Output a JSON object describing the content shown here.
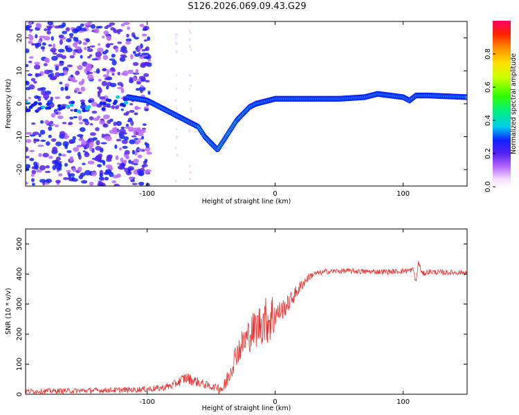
{
  "title": "S126.2026.069.09.43.G29",
  "colors": {
    "snr_line": "#e8312f",
    "axis": "#000000"
  },
  "chart_data": [
    {
      "type": "heatmap",
      "xlabel": "Height of straight line (km)",
      "ylabel": "Frequency (Hz)",
      "xlim": [
        -195,
        150
      ],
      "ylim": [
        -25,
        25
      ],
      "xticks": [
        -100,
        0,
        100
      ],
      "yticks": [
        -20,
        -10,
        0,
        10,
        20
      ],
      "colorbar": {
        "label": "Normalized spectral amplitude",
        "range": [
          0,
          1
        ],
        "ticks": [
          0.0,
          0.2,
          0.4,
          0.6,
          0.8
        ]
      },
      "ridge": {
        "x": [
          -115,
          -100,
          -90,
          -80,
          -70,
          -60,
          -55,
          -50,
          -45,
          -40,
          -35,
          -30,
          -25,
          -20,
          -15,
          -10,
          -5,
          0,
          10,
          30,
          50,
          70,
          80,
          90,
          100,
          105,
          110,
          120,
          150
        ],
        "freq": [
          2,
          1,
          -1,
          -3,
          -5,
          -7,
          -10,
          -12,
          -14,
          -11,
          -8,
          -5,
          -3,
          -1,
          0,
          0.5,
          1,
          1.5,
          1.5,
          1.5,
          1.5,
          2,
          3,
          2.5,
          2,
          1,
          2.5,
          2.5,
          2
        ]
      }
    },
    {
      "type": "line",
      "xlabel": "Height of straight line (km)",
      "ylabel": "SNR (10 * v/v)",
      "xlim": [
        -195,
        150
      ],
      "ylim": [
        0,
        550
      ],
      "xticks": [
        -100,
        0,
        100
      ],
      "yticks": [
        0,
        100,
        200,
        300,
        400,
        500
      ],
      "series": [
        {
          "name": "SNR",
          "x": [
            -195,
            -150,
            -110,
            -90,
            -80,
            -70,
            -60,
            -50,
            -40,
            -35,
            -30,
            -25,
            -20,
            -15,
            -10,
            -5,
            0,
            5,
            10,
            15,
            20,
            25,
            30,
            40,
            50,
            60,
            70,
            80,
            90,
            100,
            105,
            108,
            110,
            112,
            115,
            120,
            130,
            150
          ],
          "y": [
            10,
            12,
            15,
            20,
            30,
            55,
            40,
            25,
            20,
            80,
            140,
            170,
            200,
            220,
            240,
            250,
            265,
            280,
            300,
            330,
            360,
            385,
            400,
            408,
            410,
            410,
            408,
            408,
            408,
            410,
            412,
            415,
            370,
            440,
            400,
            408,
            405,
            405
          ]
        }
      ]
    }
  ]
}
